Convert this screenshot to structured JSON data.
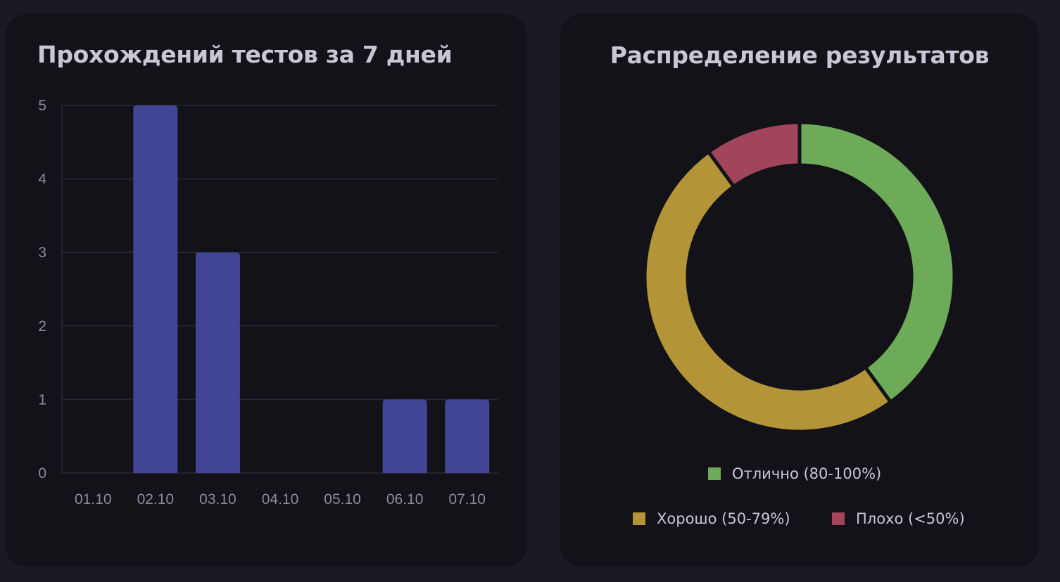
{
  "colors": {
    "bar": "#424595",
    "grid": "#2a2932",
    "excellent": "#6dab59",
    "good": "#b39437",
    "bad": "#a2455b"
  },
  "bar_card": {
    "title": "Прохождений тестов за 7 дней"
  },
  "pie_card": {
    "title": "Распределение результатов"
  },
  "chart_data": [
    {
      "type": "bar",
      "title": "Прохождений тестов за 7 дней",
      "categories": [
        "01.10",
        "02.10",
        "03.10",
        "04.10",
        "05.10",
        "06.10",
        "07.10"
      ],
      "values": [
        0,
        5,
        3,
        0,
        0,
        1,
        1
      ],
      "ylim": [
        0,
        5
      ],
      "yticks": [
        "0",
        "1",
        "2",
        "3",
        "4",
        "5"
      ],
      "grid": true
    },
    {
      "type": "pie",
      "style": "donut",
      "title": "Распределение результатов",
      "labels": [
        "Отлично (80-100%)",
        "Хорошо (50-79%)",
        "Плохо (<50%)"
      ],
      "values": [
        4,
        5,
        1
      ],
      "legend": "bottom"
    }
  ]
}
